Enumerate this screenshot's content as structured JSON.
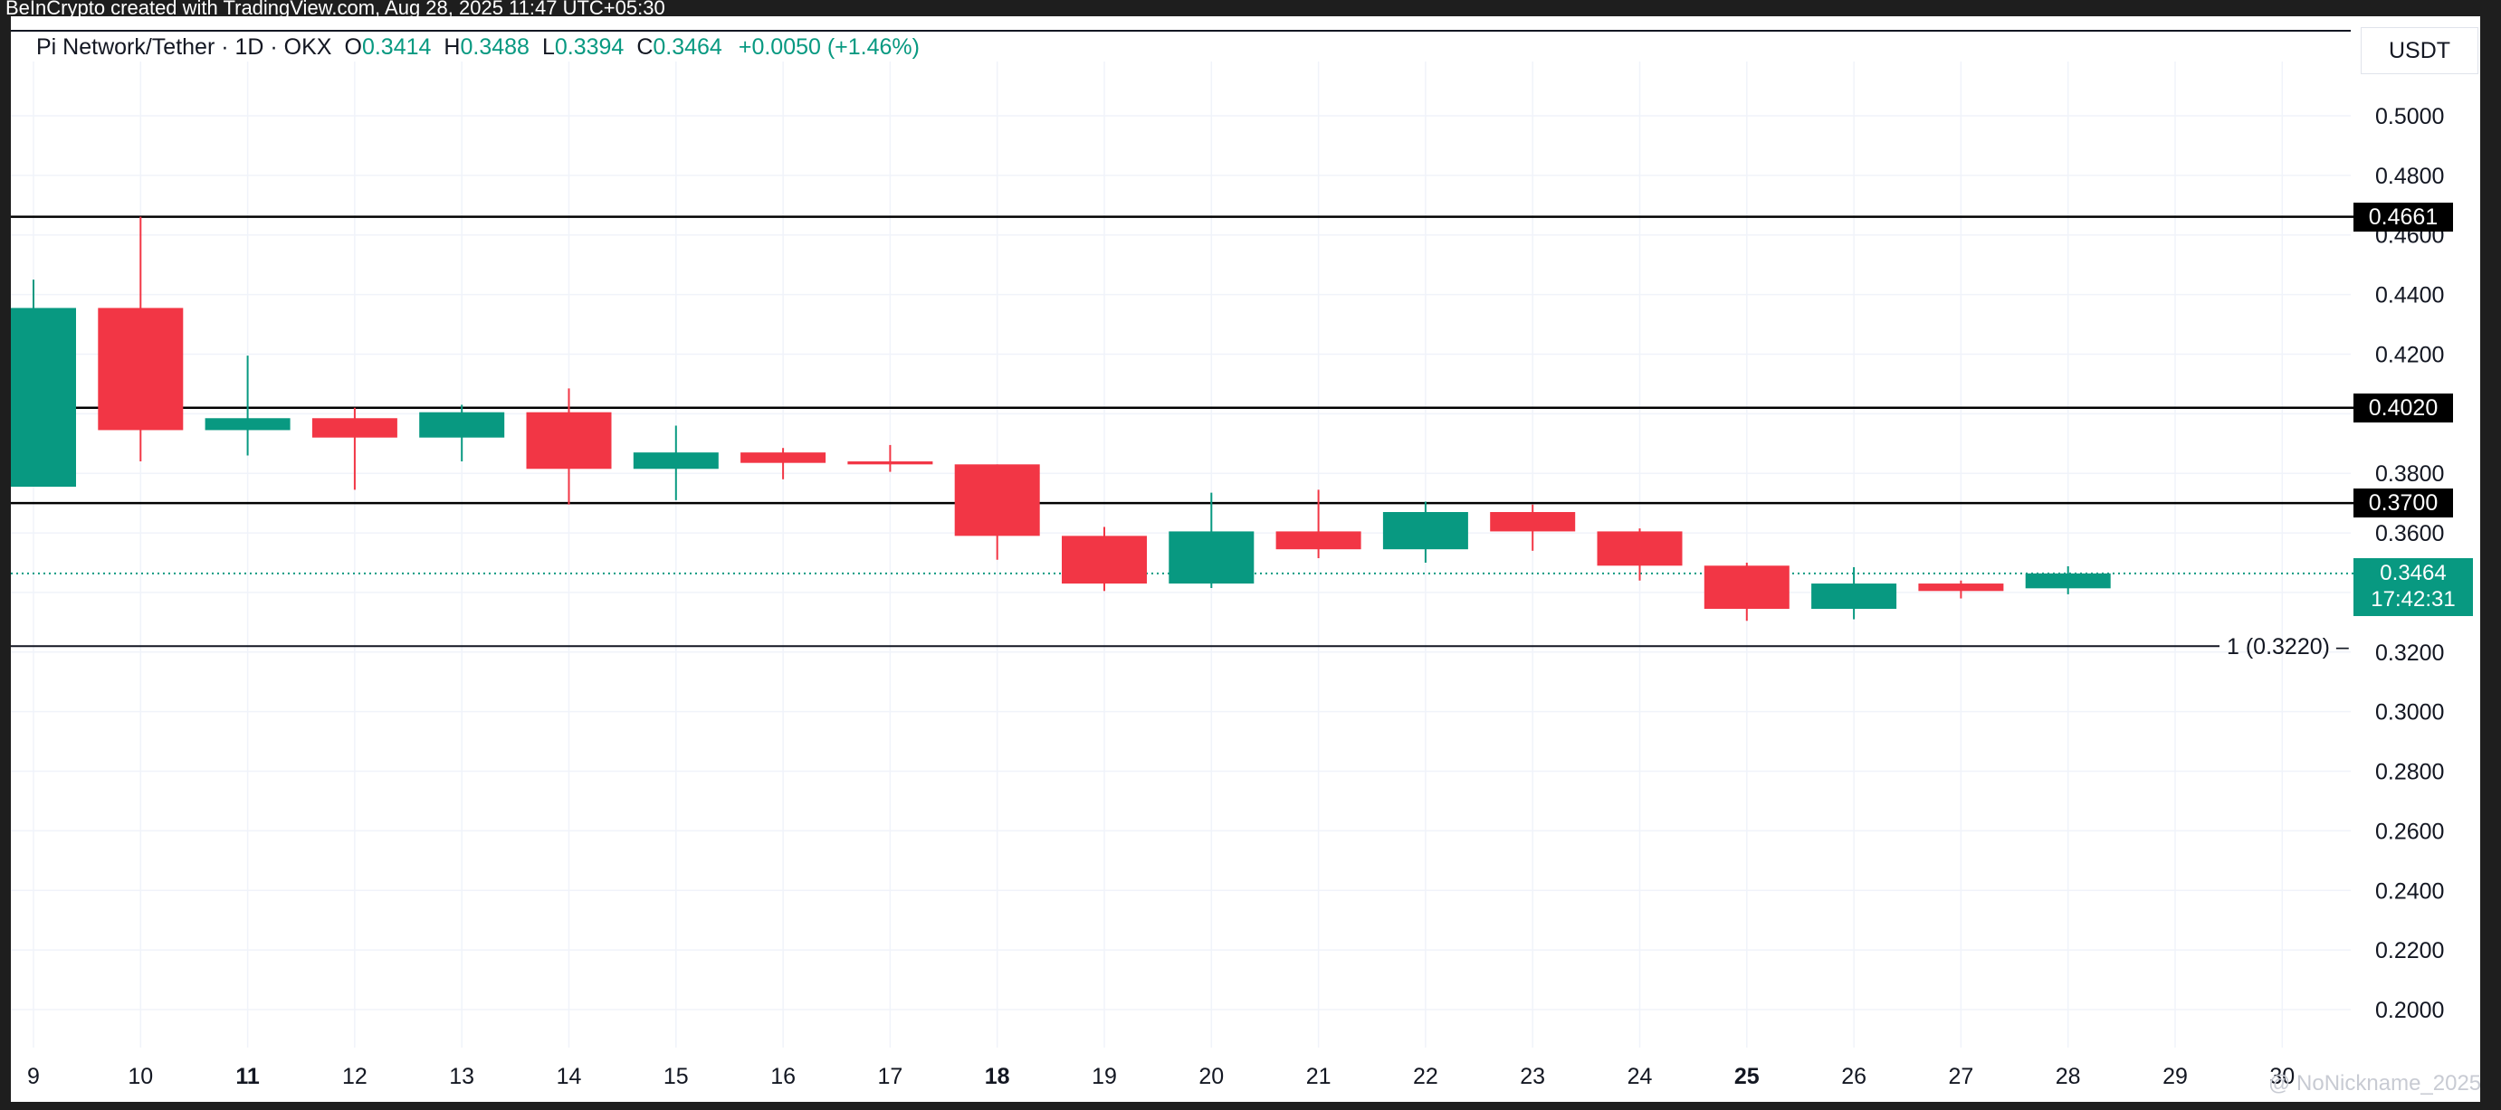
{
  "banner": {
    "text": "BeInCrypto created with TradingView.com, Aug 28, 2025 11:47 UTC+05:30"
  },
  "legend": {
    "symbol": "Pi Network/Tether · 1D · OKX",
    "o_label": "O",
    "o_value": "0.3414",
    "h_label": "H",
    "h_value": "0.3488",
    "l_label": "L",
    "l_value": "0.3394",
    "c_label": "C",
    "c_value": "0.3464",
    "change": "+0.0050 (+1.46%)"
  },
  "axis": {
    "currency": "USDT"
  },
  "levels": [
    {
      "label": "0.4661",
      "value": 0.4661
    },
    {
      "label": "0.4020",
      "value": 0.402
    },
    {
      "label": "0.3700",
      "value": 0.37
    }
  ],
  "fib": {
    "label": "1 (0.3220)",
    "value": 0.322
  },
  "current_price": {
    "value_label": "0.3464",
    "countdown": "17:42:31",
    "value": 0.3464
  },
  "watermark": "@ NoNickname_2025",
  "colors": {
    "up": "#089981",
    "down": "#f23645",
    "grid": "#f0f3fa",
    "level_line": "#000000"
  },
  "chart_data": {
    "type": "candlestick",
    "x_labels": [
      "9",
      "10",
      "11",
      "12",
      "13",
      "14",
      "15",
      "16",
      "17",
      "18",
      "19",
      "20",
      "21",
      "22",
      "23",
      "24",
      "25",
      "26",
      "27",
      "28",
      "29",
      "30"
    ],
    "x_labels_bold": [
      "11",
      "18",
      "25"
    ],
    "y_ticks": [
      "0.5000",
      "0.4800",
      "0.4600",
      "0.4400",
      "0.4200",
      "0.4000",
      "0.3800",
      "0.3600",
      "0.3400",
      "0.3200",
      "0.3000",
      "0.2800",
      "0.2600",
      "0.2400",
      "0.2200",
      "0.2000"
    ],
    "ylim": [
      0.19,
      0.52
    ],
    "grid": true,
    "candles": [
      {
        "day": "9",
        "o": 0.3755,
        "h": 0.445,
        "l": 0.3755,
        "c": 0.4355
      },
      {
        "day": "10",
        "o": 0.4355,
        "h": 0.4661,
        "l": 0.384,
        "c": 0.3945
      },
      {
        "day": "11",
        "o": 0.3945,
        "h": 0.4195,
        "l": 0.386,
        "c": 0.3985
      },
      {
        "day": "12",
        "o": 0.3985,
        "h": 0.402,
        "l": 0.3745,
        "c": 0.392
      },
      {
        "day": "13",
        "o": 0.392,
        "h": 0.403,
        "l": 0.384,
        "c": 0.4005
      },
      {
        "day": "14",
        "o": 0.4005,
        "h": 0.4085,
        "l": 0.3695,
        "c": 0.3815
      },
      {
        "day": "15",
        "o": 0.3815,
        "h": 0.396,
        "l": 0.371,
        "c": 0.387
      },
      {
        "day": "16",
        "o": 0.387,
        "h": 0.3885,
        "l": 0.378,
        "c": 0.3835
      },
      {
        "day": "17",
        "o": 0.384,
        "h": 0.3895,
        "l": 0.3805,
        "c": 0.383
      },
      {
        "day": "18",
        "o": 0.383,
        "h": 0.383,
        "l": 0.351,
        "c": 0.359
      },
      {
        "day": "19",
        "o": 0.359,
        "h": 0.362,
        "l": 0.3405,
        "c": 0.343
      },
      {
        "day": "20",
        "o": 0.343,
        "h": 0.3735,
        "l": 0.3415,
        "c": 0.3605
      },
      {
        "day": "21",
        "o": 0.3605,
        "h": 0.3745,
        "l": 0.3515,
        "c": 0.3545
      },
      {
        "day": "22",
        "o": 0.3545,
        "h": 0.3705,
        "l": 0.35,
        "c": 0.367
      },
      {
        "day": "23",
        "o": 0.367,
        "h": 0.3695,
        "l": 0.354,
        "c": 0.3605
      },
      {
        "day": "24",
        "o": 0.3605,
        "h": 0.3615,
        "l": 0.344,
        "c": 0.349
      },
      {
        "day": "25",
        "o": 0.349,
        "h": 0.35,
        "l": 0.3305,
        "c": 0.3345
      },
      {
        "day": "26",
        "o": 0.3345,
        "h": 0.3485,
        "l": 0.331,
        "c": 0.343
      },
      {
        "day": "27",
        "o": 0.343,
        "h": 0.344,
        "l": 0.338,
        "c": 0.3405
      },
      {
        "day": "28",
        "o": 0.3414,
        "h": 0.3488,
        "l": 0.3394,
        "c": 0.3464
      }
    ]
  }
}
